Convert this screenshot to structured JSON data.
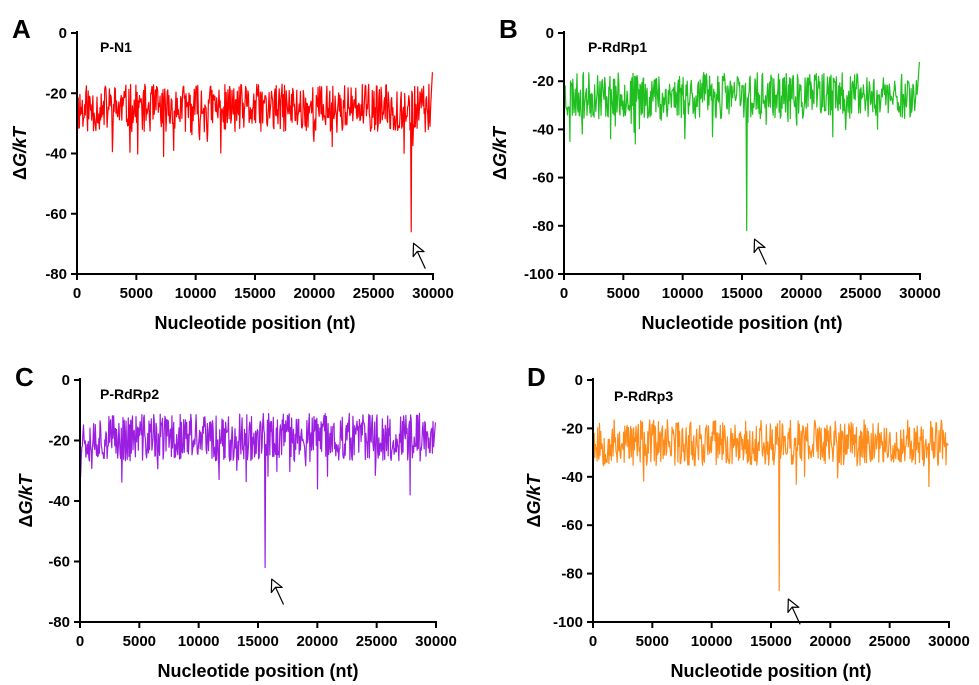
{
  "chart_data": [
    {
      "type": "line",
      "panel": "A",
      "probe_label": "P-N1",
      "xlabel": "Nucleotide position (nt)",
      "ylabel_delta": "Δ",
      "ylabel_var": "G/kT",
      "xlim": [
        0,
        30000
      ],
      "ylim": [
        -80,
        0
      ],
      "x_ticks": [
        0,
        5000,
        10000,
        15000,
        20000,
        25000,
        30000
      ],
      "y_ticks": [
        0,
        -20,
        -40,
        -60,
        -80
      ],
      "color": "#ff0000",
      "baseline": -25,
      "spread": 5,
      "seed": 11,
      "end_value": -13,
      "dips": [
        {
          "x": 7300,
          "y": -41
        },
        {
          "x": 11000,
          "y": -36
        },
        {
          "x": 28150,
          "y": -66
        }
      ],
      "arrow": {
        "x": 28500,
        "y": -71
      }
    },
    {
      "type": "line",
      "panel": "B",
      "probe_label": "P-RdRp1",
      "xlabel": "Nucleotide position (nt)",
      "ylabel_delta": "Δ",
      "ylabel_var": "G/kT",
      "xlim": [
        0,
        30000
      ],
      "ylim": [
        -100,
        0
      ],
      "x_ticks": [
        0,
        5000,
        10000,
        15000,
        20000,
        25000,
        30000
      ],
      "y_ticks": [
        0,
        -20,
        -40,
        -60,
        -80,
        -100
      ],
      "color": "#1fbf1f",
      "baseline": -26,
      "spread": 6,
      "seed": 23,
      "end_value": -12,
      "dips": [
        {
          "x": 500,
          "y": -45
        },
        {
          "x": 6000,
          "y": -46
        },
        {
          "x": 15400,
          "y": -82
        }
      ],
      "arrow": {
        "x": 16200,
        "y": -87
      }
    },
    {
      "type": "line",
      "panel": "C",
      "probe_label": "P-RdRp2",
      "xlabel": "Nucleotide position (nt)",
      "ylabel_delta": "Δ",
      "ylabel_var": "G/kT",
      "xlim": [
        0,
        30000
      ],
      "ylim": [
        -80,
        0
      ],
      "x_ticks": [
        0,
        5000,
        10000,
        15000,
        20000,
        25000,
        30000
      ],
      "y_ticks": [
        0,
        -20,
        -40,
        -60,
        -80
      ],
      "color": "#9b1fe0",
      "baseline": -19,
      "spread": 5,
      "seed": 37,
      "end_value": -14,
      "dips": [
        {
          "x": 15600,
          "y": -62
        },
        {
          "x": 20000,
          "y": -36
        },
        {
          "x": 27800,
          "y": -38
        }
      ],
      "arrow": {
        "x": 16300,
        "y": -67
      }
    },
    {
      "type": "line",
      "panel": "D",
      "probe_label": "P-RdRp3",
      "xlabel": "Nucleotide position (nt)",
      "ylabel_delta": "Δ",
      "ylabel_var": "G/kT",
      "xlim": [
        0,
        30000
      ],
      "ylim": [
        -100,
        0
      ],
      "x_ticks": [
        0,
        5000,
        10000,
        15000,
        20000,
        25000,
        30000
      ],
      "y_ticks": [
        0,
        -20,
        -40,
        -60,
        -80,
        -100
      ],
      "color": "#ff8c1a",
      "baseline": -26,
      "spread": 6,
      "seed": 53,
      "end_value": -27,
      "dips": [
        {
          "x": 15700,
          "y": -87
        },
        {
          "x": 28300,
          "y": -44
        }
      ],
      "arrow": {
        "x": 16600,
        "y": -92
      }
    }
  ]
}
